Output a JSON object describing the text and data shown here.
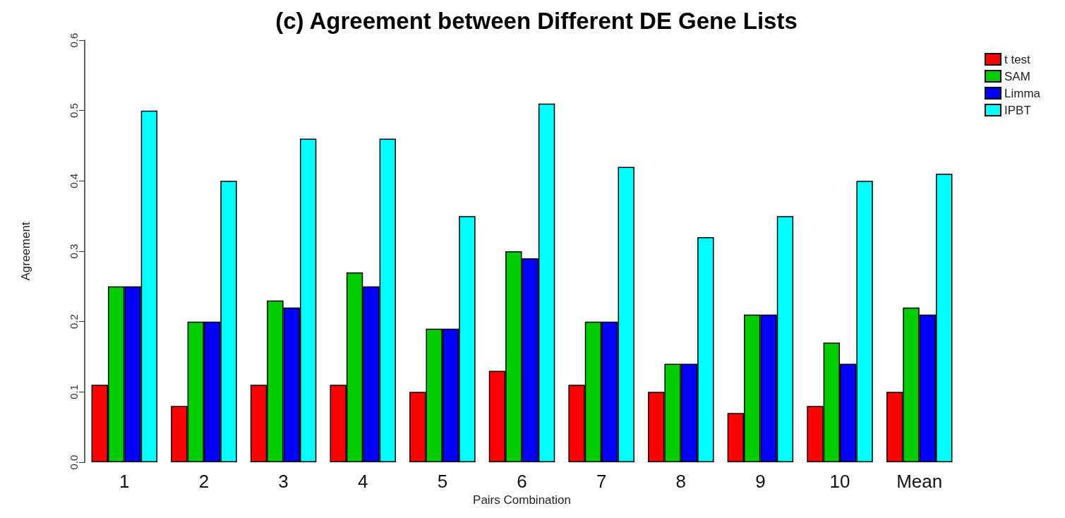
{
  "chart_data": {
    "type": "bar",
    "title": "(c) Agreement between Different DE Gene Lists",
    "xlabel": "Pairs Combination",
    "ylabel": "Agreement",
    "categories": [
      "1",
      "2",
      "3",
      "4",
      "5",
      "6",
      "7",
      "8",
      "9",
      "10",
      "Mean"
    ],
    "series": [
      {
        "name": "t test",
        "color": "#ff0000",
        "values": [
          0.11,
          0.08,
          0.11,
          0.11,
          0.1,
          0.13,
          0.11,
          0.1,
          0.07,
          0.08,
          0.1
        ]
      },
      {
        "name": "SAM",
        "color": "#00cd00",
        "values": [
          0.25,
          0.2,
          0.23,
          0.27,
          0.19,
          0.3,
          0.2,
          0.14,
          0.21,
          0.17,
          0.22
        ]
      },
      {
        "name": "Limma",
        "color": "#0000ff",
        "values": [
          0.25,
          0.2,
          0.22,
          0.25,
          0.19,
          0.29,
          0.2,
          0.14,
          0.21,
          0.14,
          0.21
        ]
      },
      {
        "name": "IPBT",
        "color": "#00ffff",
        "values": [
          0.5,
          0.4,
          0.46,
          0.46,
          0.35,
          0.51,
          0.42,
          0.32,
          0.35,
          0.4,
          0.41
        ]
      }
    ],
    "ylim": [
      0,
      0.6
    ],
    "yticks": [
      {
        "value": 0,
        "label": "0.0"
      },
      0.1,
      0.2,
      0.3,
      0.4,
      0.5,
      0.6
    ],
    "grid": false,
    "legend": "top right"
  }
}
